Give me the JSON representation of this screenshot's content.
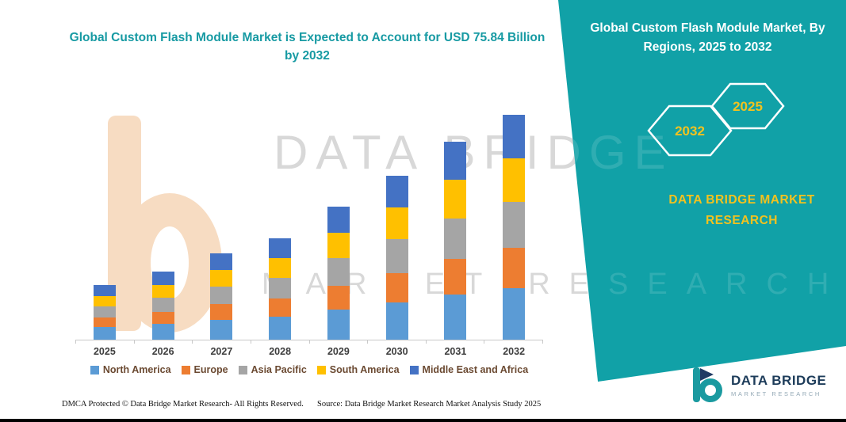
{
  "theme": {
    "brand_teal": "#11a1a7",
    "accent_yellow": "#f2c21f",
    "title_teal": "#179aa3"
  },
  "header": {
    "title": "Global Custom Flash Module Market is Expected to Account for USD 75.84 Billion by 2032"
  },
  "side_panel": {
    "title": "Global Custom Flash Module Market, By Regions, 2025 to 2032",
    "badges": [
      "2032",
      "2025"
    ],
    "brand": "DATA BRIDGE MARKET RESEARCH"
  },
  "watermark": {
    "line1": "DATA BRIDGE",
    "line2": "MARKET RESEARCH"
  },
  "chart_data": {
    "type": "bar",
    "stacked": true,
    "title": "Global Custom Flash Module Market is Expected to Account for USD 75.84 Billion by 2032",
    "categories": [
      "2025",
      "2026",
      "2027",
      "2028",
      "2029",
      "2030",
      "2031",
      "2032"
    ],
    "series": [
      {
        "name": "North America",
        "color": "#5B9BD5",
        "values": [
          4.2,
          5.3,
          6.7,
          7.8,
          10.2,
          12.6,
          15.2,
          17.3
        ]
      },
      {
        "name": "Europe",
        "color": "#ED7D31",
        "values": [
          3.2,
          4.1,
          5.2,
          6.1,
          8.0,
          9.9,
          12.0,
          13.6
        ]
      },
      {
        "name": "Asia Pacific",
        "color": "#A5A5A5",
        "values": [
          3.8,
          4.7,
          6.0,
          7.0,
          9.2,
          11.3,
          13.7,
          15.6
        ]
      },
      {
        "name": "South America",
        "color": "#FFC000",
        "values": [
          3.5,
          4.4,
          5.7,
          6.6,
          8.7,
          10.7,
          12.9,
          14.7
        ]
      },
      {
        "name": "Middle East and Africa",
        "color": "#4472C4",
        "values": [
          3.6,
          4.4,
          5.6,
          6.6,
          8.6,
          10.6,
          12.8,
          14.64
        ]
      }
    ],
    "totals": [
      18.3,
      22.9,
      29.2,
      34.1,
      44.7,
      55.1,
      66.6,
      75.84
    ],
    "unit": "USD Billion",
    "xlabel": "",
    "ylabel": "",
    "ylim": [
      0,
      80
    ],
    "grid": false,
    "legend_position": "bottom"
  },
  "footer": {
    "dmca": "DMCA Protected © Data Bridge Market Research-  All Rights Reserved.",
    "source": "Source: Data Bridge Market Research  Market Analysis Study 2025"
  },
  "logo": {
    "name": "DATA BRIDGE",
    "subtitle": "MARKET RESEARCH"
  }
}
